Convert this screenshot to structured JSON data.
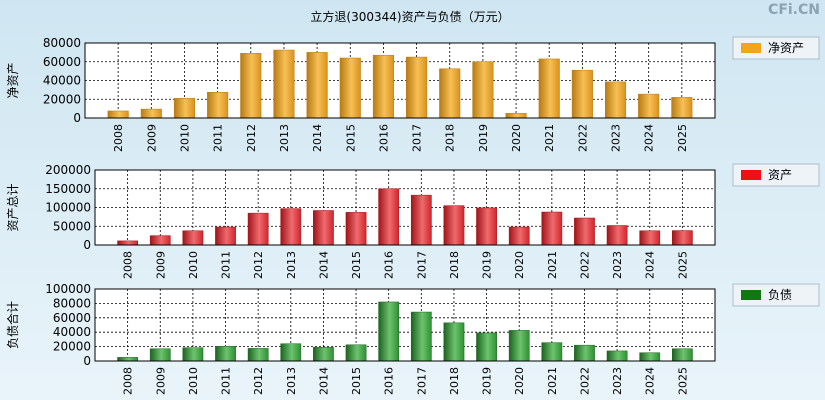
{
  "title": "立方退(300344)资产与负债（万元）",
  "watermark": "CFi.CN",
  "chart_data": [
    {
      "type": "bar",
      "ylabel": "净资产",
      "legend": "净资产",
      "legend_color": "#f2a51c",
      "categories": [
        "2008",
        "2009",
        "2010",
        "2011",
        "2012",
        "2013",
        "2014",
        "2015",
        "2016",
        "2017",
        "2018",
        "2019",
        "2020",
        "2021",
        "2022",
        "2023",
        "2024",
        "2025"
      ],
      "values": [
        7500,
        9500,
        21000,
        27500,
        69000,
        72500,
        70000,
        64000,
        67000,
        65000,
        52500,
        60000,
        5000,
        63000,
        51000,
        38500,
        25500,
        22000
      ],
      "ylim": [
        0,
        80000
      ],
      "yticks": [
        "0",
        "20000",
        "40000",
        "60000",
        "80000"
      ],
      "bar_colors": [
        "#b87a12",
        "#f7c055",
        "#d9921e"
      ]
    },
    {
      "type": "bar",
      "ylabel": "资产总计",
      "legend": "资产",
      "legend_color": "#ee1111",
      "categories": [
        "2008",
        "2009",
        "2010",
        "2011",
        "2012",
        "2013",
        "2014",
        "2015",
        "2016",
        "2017",
        "2018",
        "2019",
        "2020",
        "2021",
        "2022",
        "2023",
        "2024",
        "2025"
      ],
      "values": [
        11000,
        25000,
        38000,
        48000,
        85000,
        97000,
        92000,
        87000,
        150000,
        133000,
        105000,
        99000,
        48000,
        88000,
        72000,
        52000,
        38000,
        38500
      ],
      "ylim": [
        0,
        200000
      ],
      "yticks": [
        "0",
        "50000",
        "100000",
        "150000",
        "200000"
      ],
      "bar_colors": [
        "#a01418",
        "#f06a6e",
        "#cf262c"
      ]
    },
    {
      "type": "bar",
      "ylabel": "负债合计",
      "legend": "负债",
      "legend_color": "#0e7a0e",
      "categories": [
        "2008",
        "2009",
        "2010",
        "2011",
        "2012",
        "2013",
        "2014",
        "2015",
        "2016",
        "2017",
        "2018",
        "2019",
        "2020",
        "2021",
        "2022",
        "2023",
        "2024",
        "2025"
      ],
      "values": [
        5000,
        17000,
        18500,
        20500,
        17500,
        24000,
        19000,
        22500,
        82000,
        68000,
        53000,
        39000,
        42500,
        25500,
        22000,
        14000,
        11500,
        17000
      ],
      "ylim": [
        0,
        100000
      ],
      "yticks": [
        "0",
        "20000",
        "40000",
        "60000",
        "80000",
        "100000"
      ],
      "bar_colors": [
        "#1d6220",
        "#6cc46e",
        "#2f8f33"
      ]
    }
  ]
}
